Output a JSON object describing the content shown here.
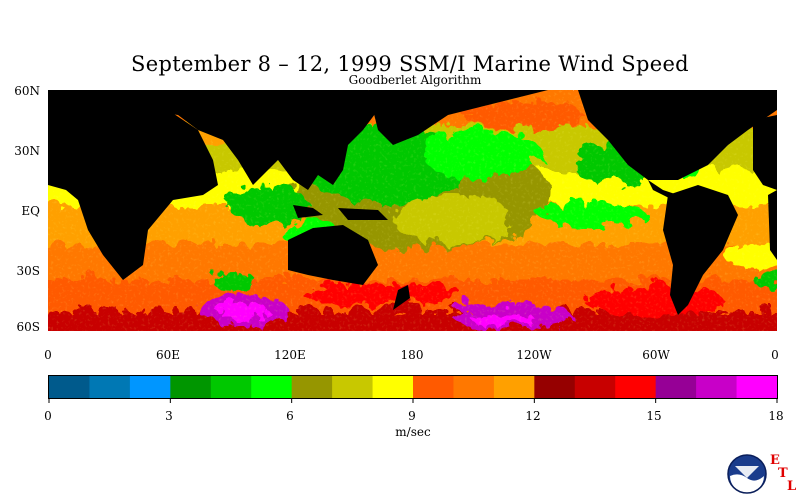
{
  "title": "September 8 – 12, 1999 SSM/I Marine Wind Speed",
  "subtitle": "Goodberlet Algorithm",
  "map": {
    "lat_labels": [
      "60N",
      "30N",
      "EQ",
      "30S",
      "60S"
    ],
    "lon_labels": [
      "0",
      "60E",
      "120E",
      "180",
      "120W",
      "60W",
      "0"
    ],
    "land_color": "#000000",
    "background": "#ffffff"
  },
  "colorbar": {
    "units": "m/sec",
    "tick_labels": [
      "0",
      "3",
      "6",
      "9",
      "12",
      "15",
      "18"
    ],
    "min": 0,
    "max": 18,
    "colors": [
      "#005a8c",
      "#0078b4",
      "#0096ff",
      "#009600",
      "#00c800",
      "#00ff00",
      "#969600",
      "#c8c800",
      "#ffff00",
      "#ff5a00",
      "#ff7800",
      "#ffa000",
      "#960000",
      "#c80000",
      "#ff0000",
      "#960096",
      "#c800c8",
      "#ff00ff"
    ]
  },
  "logo": {
    "name": "NOAA",
    "etl_letters": [
      "E",
      "T",
      "L"
    ]
  }
}
